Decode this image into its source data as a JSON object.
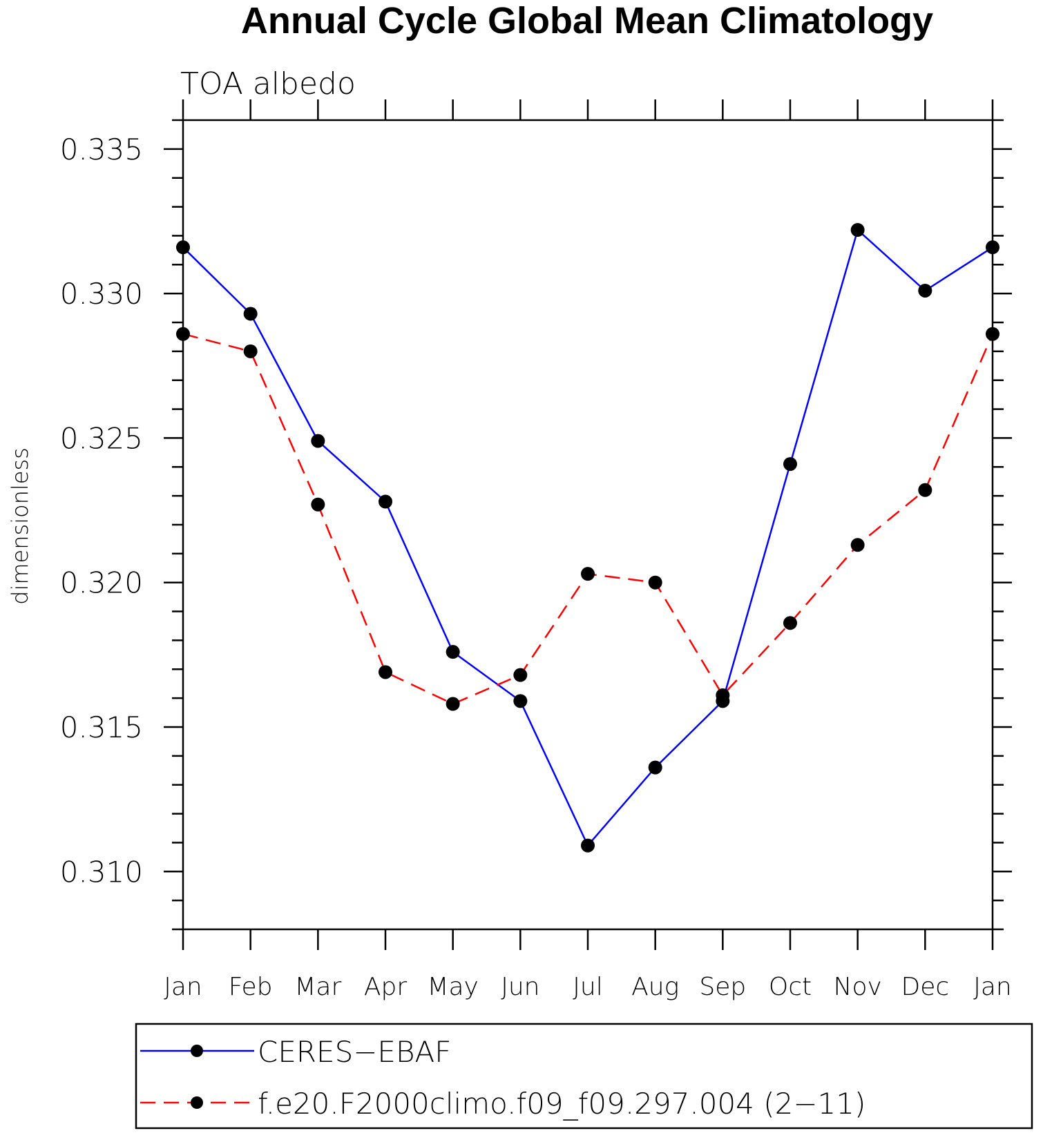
{
  "chart_data": {
    "type": "line",
    "title": "Annual Cycle Global Mean Climatology",
    "subtitle": "TOA albedo",
    "xlabel": "",
    "ylabel": "dimensionless",
    "categories": [
      "Jan",
      "Feb",
      "Mar",
      "Apr",
      "May",
      "Jun",
      "Jul",
      "Aug",
      "Sep",
      "Oct",
      "Nov",
      "Dec",
      "Jan"
    ],
    "ylim": [
      0.308,
      0.336
    ],
    "yticks": [
      "0.310",
      "0.315",
      "0.320",
      "0.325",
      "0.330",
      "0.335"
    ],
    "ytick_values": [
      0.31,
      0.315,
      0.32,
      0.325,
      0.33,
      0.335
    ],
    "y_minor_step": 0.001,
    "grid": false,
    "legend_position": "bottom",
    "series": [
      {
        "name": "CERES−EBAF",
        "color": "#0000ff",
        "line_style": "solid",
        "marker": "filled-circle",
        "values": [
          0.3316,
          0.3293,
          0.3249,
          0.3228,
          0.3176,
          0.3159,
          0.3109,
          0.3136,
          0.3159,
          0.3241,
          0.3322,
          0.3301,
          0.3316
        ]
      },
      {
        "name": "f.e20.F2000climo.f09_f09.297.004 (2−11)",
        "color": "#ff0000",
        "line_style": "dashed",
        "marker": "filled-circle",
        "values": [
          0.3286,
          0.328,
          0.3227,
          0.3169,
          0.3158,
          0.3168,
          0.3203,
          0.32,
          0.3161,
          0.3186,
          0.3213,
          0.3232,
          0.3286
        ]
      }
    ]
  }
}
